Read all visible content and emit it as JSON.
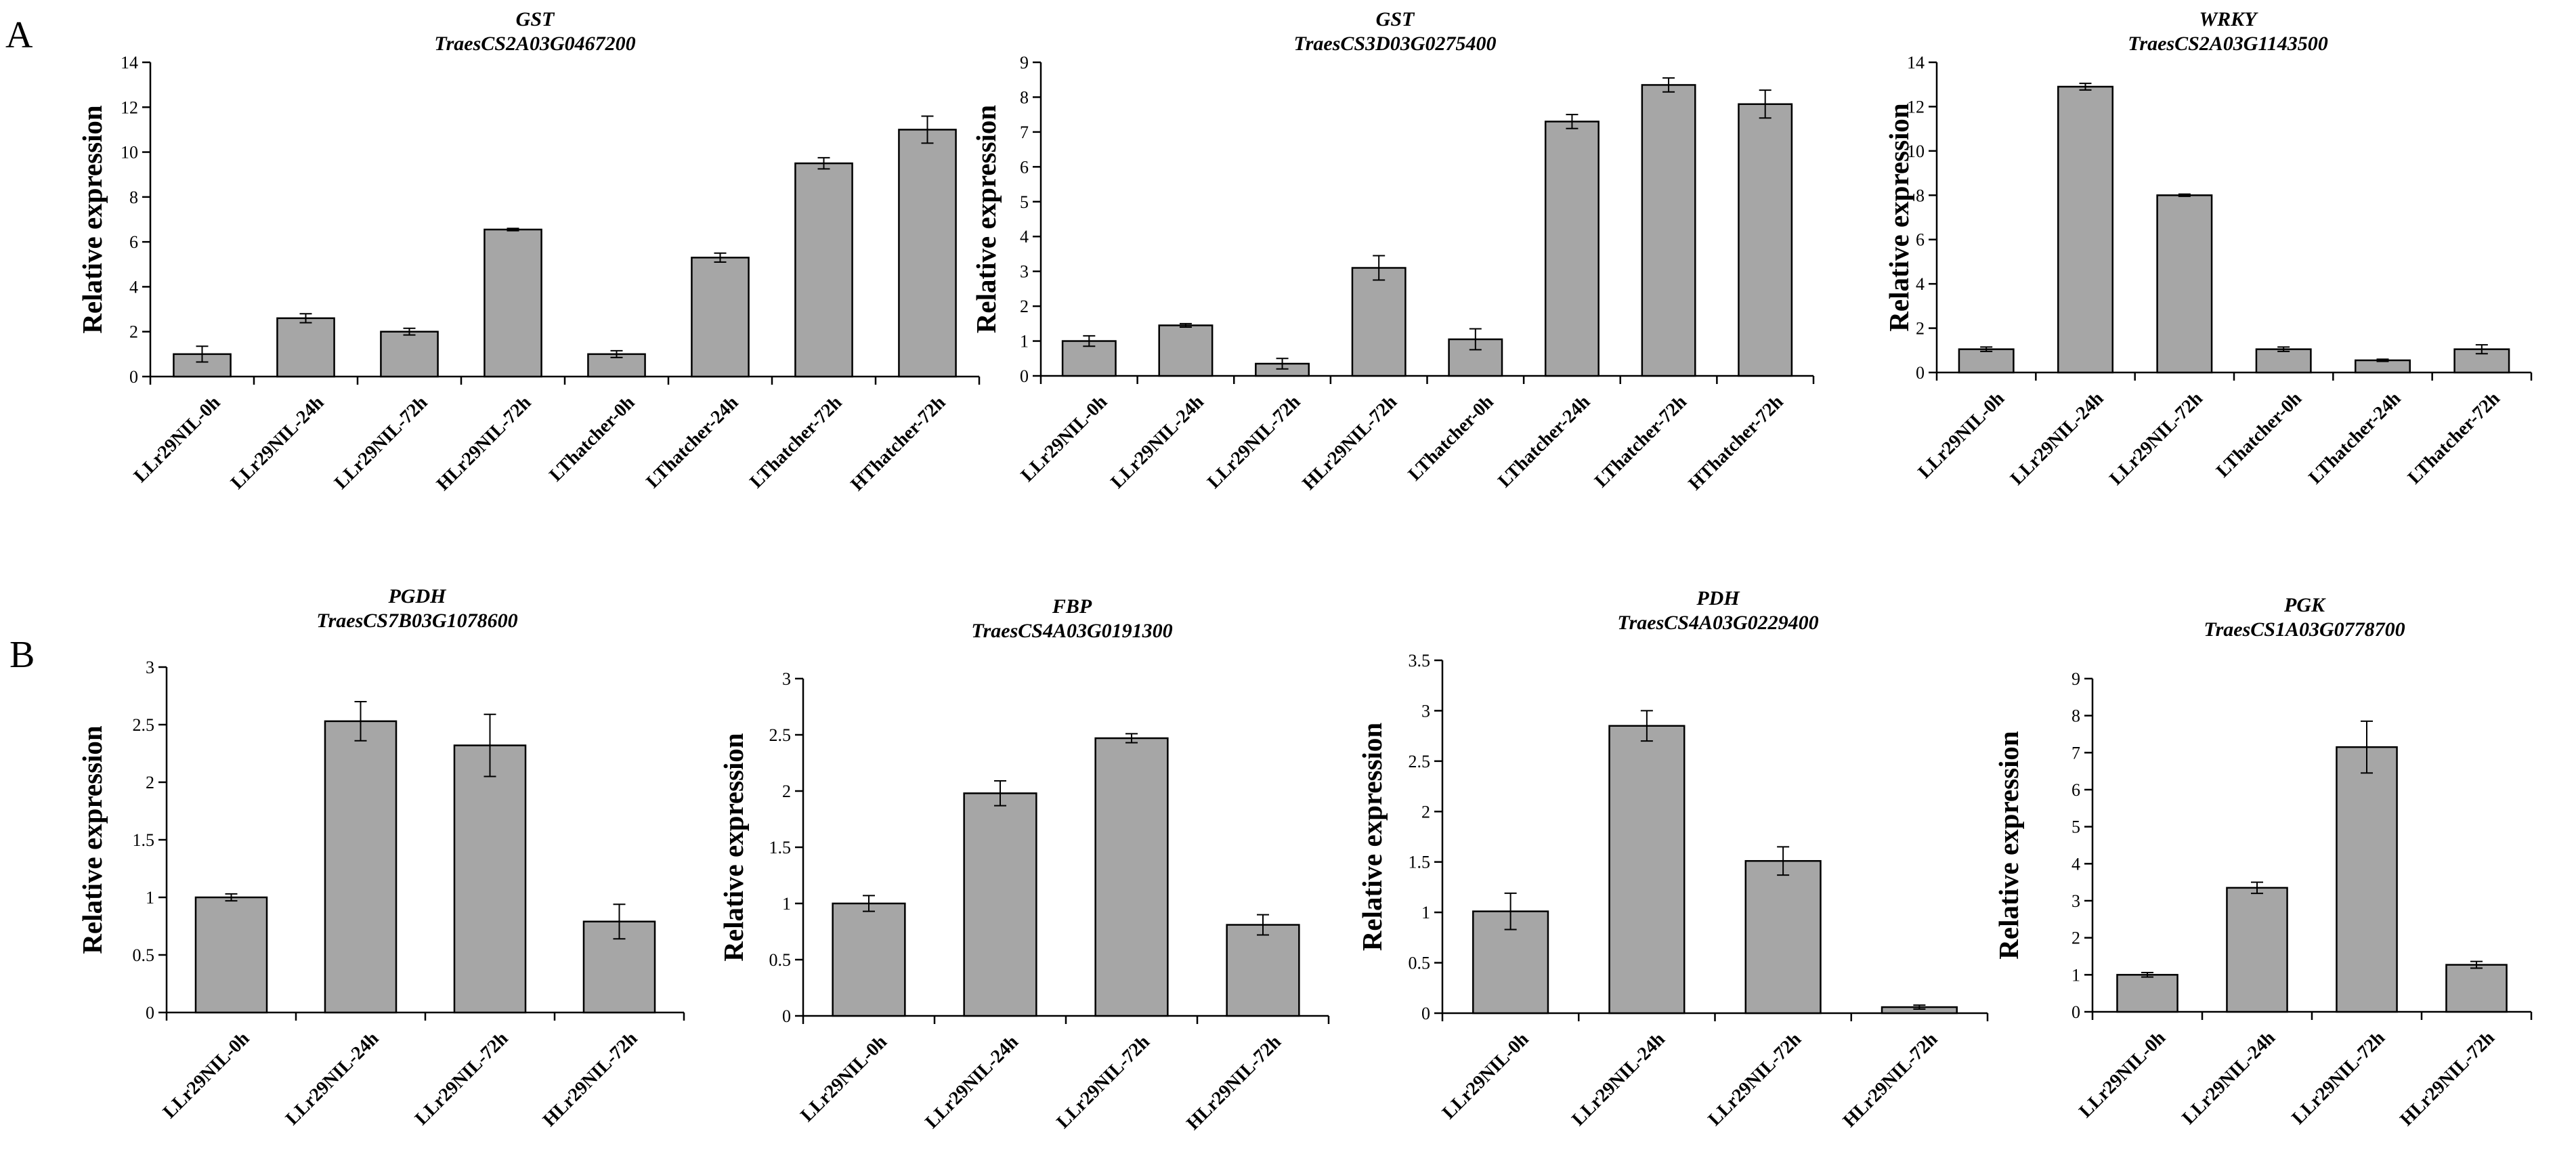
{
  "panels": [
    {
      "id": "A",
      "label": "A"
    },
    {
      "id": "B",
      "label": "B"
    }
  ],
  "chart_data": [
    {
      "id": "a1",
      "panel": "A",
      "type": "bar",
      "title": "GST",
      "subtitle": "TraesCS2A03G0467200",
      "ylabel": "Relative expression",
      "ylim": [
        0,
        14
      ],
      "ystep": 2,
      "categories": [
        "LLr29NIL-0h",
        "LLr29NIL-24h",
        "LLr29NIL-72h",
        "HLr29NIL-72h",
        "LThatcher-0h",
        "LThatcher-24h",
        "LThatcher-72h",
        "HThatcher-72h"
      ],
      "values": [
        1.0,
        2.6,
        2.0,
        6.55,
        1.0,
        5.3,
        9.5,
        11.0
      ],
      "errors": [
        0.35,
        0.2,
        0.15,
        0.05,
        0.15,
        0.2,
        0.25,
        0.6
      ]
    },
    {
      "id": "a2",
      "panel": "A",
      "type": "bar",
      "title": "GST",
      "subtitle": "TraesCS3D03G0275400",
      "ylabel": "Relative expression",
      "ylim": [
        0,
        9
      ],
      "ystep": 1,
      "categories": [
        "LLr29NIL-0h",
        "LLr29NIL-24h",
        "LLr29NIL-72h",
        "HLr29NIL-72h",
        "LThatcher-0h",
        "LThatcher-24h",
        "LThatcher-72h",
        "HThatcher-72h"
      ],
      "values": [
        1.0,
        1.45,
        0.35,
        3.1,
        1.05,
        7.3,
        8.35,
        7.8
      ],
      "errors": [
        0.15,
        0.05,
        0.15,
        0.35,
        0.3,
        0.2,
        0.2,
        0.4
      ]
    },
    {
      "id": "a3",
      "panel": "A",
      "type": "bar",
      "title": "WRKY",
      "subtitle": "TraesCS2A03G1143500",
      "ylabel": "Relative expression",
      "ylim": [
        0,
        14
      ],
      "ystep": 2,
      "categories": [
        "LLr29NIL-0h",
        "LLr29NIL-24h",
        "LLr29NIL-72h",
        "LThatcher-0h",
        "LThatcher-24h",
        "LThatcher-72h"
      ],
      "values": [
        1.05,
        12.9,
        8.0,
        1.05,
        0.55,
        1.05
      ],
      "errors": [
        0.1,
        0.15,
        0.05,
        0.1,
        0.05,
        0.2
      ]
    },
    {
      "id": "b1",
      "panel": "B",
      "type": "bar",
      "title": "PGDH",
      "subtitle": "TraesCS7B03G1078600",
      "ylabel": "Relative expression",
      "ylim": [
        0,
        3
      ],
      "ystep": 0.5,
      "categories": [
        "LLr29NIL-0h",
        "LLr29NIL-24h",
        "LLr29NIL-72h",
        "HLr29NIL-72h"
      ],
      "values": [
        1.0,
        2.53,
        2.32,
        0.79
      ],
      "errors": [
        0.03,
        0.17,
        0.27,
        0.15
      ]
    },
    {
      "id": "b2",
      "panel": "B",
      "type": "bar",
      "title": "FBP",
      "subtitle": "TraesCS4A03G0191300",
      "ylabel": "Relative expression",
      "ylim": [
        0,
        3
      ],
      "ystep": 0.5,
      "categories": [
        "LLr29NIL-0h",
        "LLr29NIL-24h",
        "LLr29NIL-72h",
        "HLr29NIL-72h"
      ],
      "values": [
        1.0,
        1.98,
        2.47,
        0.81
      ],
      "errors": [
        0.07,
        0.11,
        0.04,
        0.09
      ]
    },
    {
      "id": "b3",
      "panel": "B",
      "type": "bar",
      "title": "PDH",
      "subtitle": "TraesCS4A03G0229400",
      "ylabel": "Relative expression",
      "ylim": [
        0,
        3.5
      ],
      "ystep": 0.5,
      "categories": [
        "LLr29NIL-0h",
        "LLr29NIL-24h",
        "LLr29NIL-72h",
        "HLr29NIL-72h"
      ],
      "values": [
        1.01,
        2.85,
        1.51,
        0.06
      ],
      "errors": [
        0.18,
        0.15,
        0.14,
        0.02
      ]
    },
    {
      "id": "b4",
      "panel": "B",
      "type": "bar",
      "title": "PGK",
      "subtitle": "TraesCS1A03G0778700",
      "ylabel": "Relative expression",
      "ylim": [
        0,
        9
      ],
      "ystep": 1,
      "categories": [
        "LLr29NIL-0h",
        "LLr29NIL-24h",
        "LLr29NIL-72h",
        "HLr29NIL-72h"
      ],
      "values": [
        1.0,
        3.35,
        7.15,
        1.27
      ],
      "errors": [
        0.06,
        0.15,
        0.7,
        0.09
      ]
    }
  ]
}
